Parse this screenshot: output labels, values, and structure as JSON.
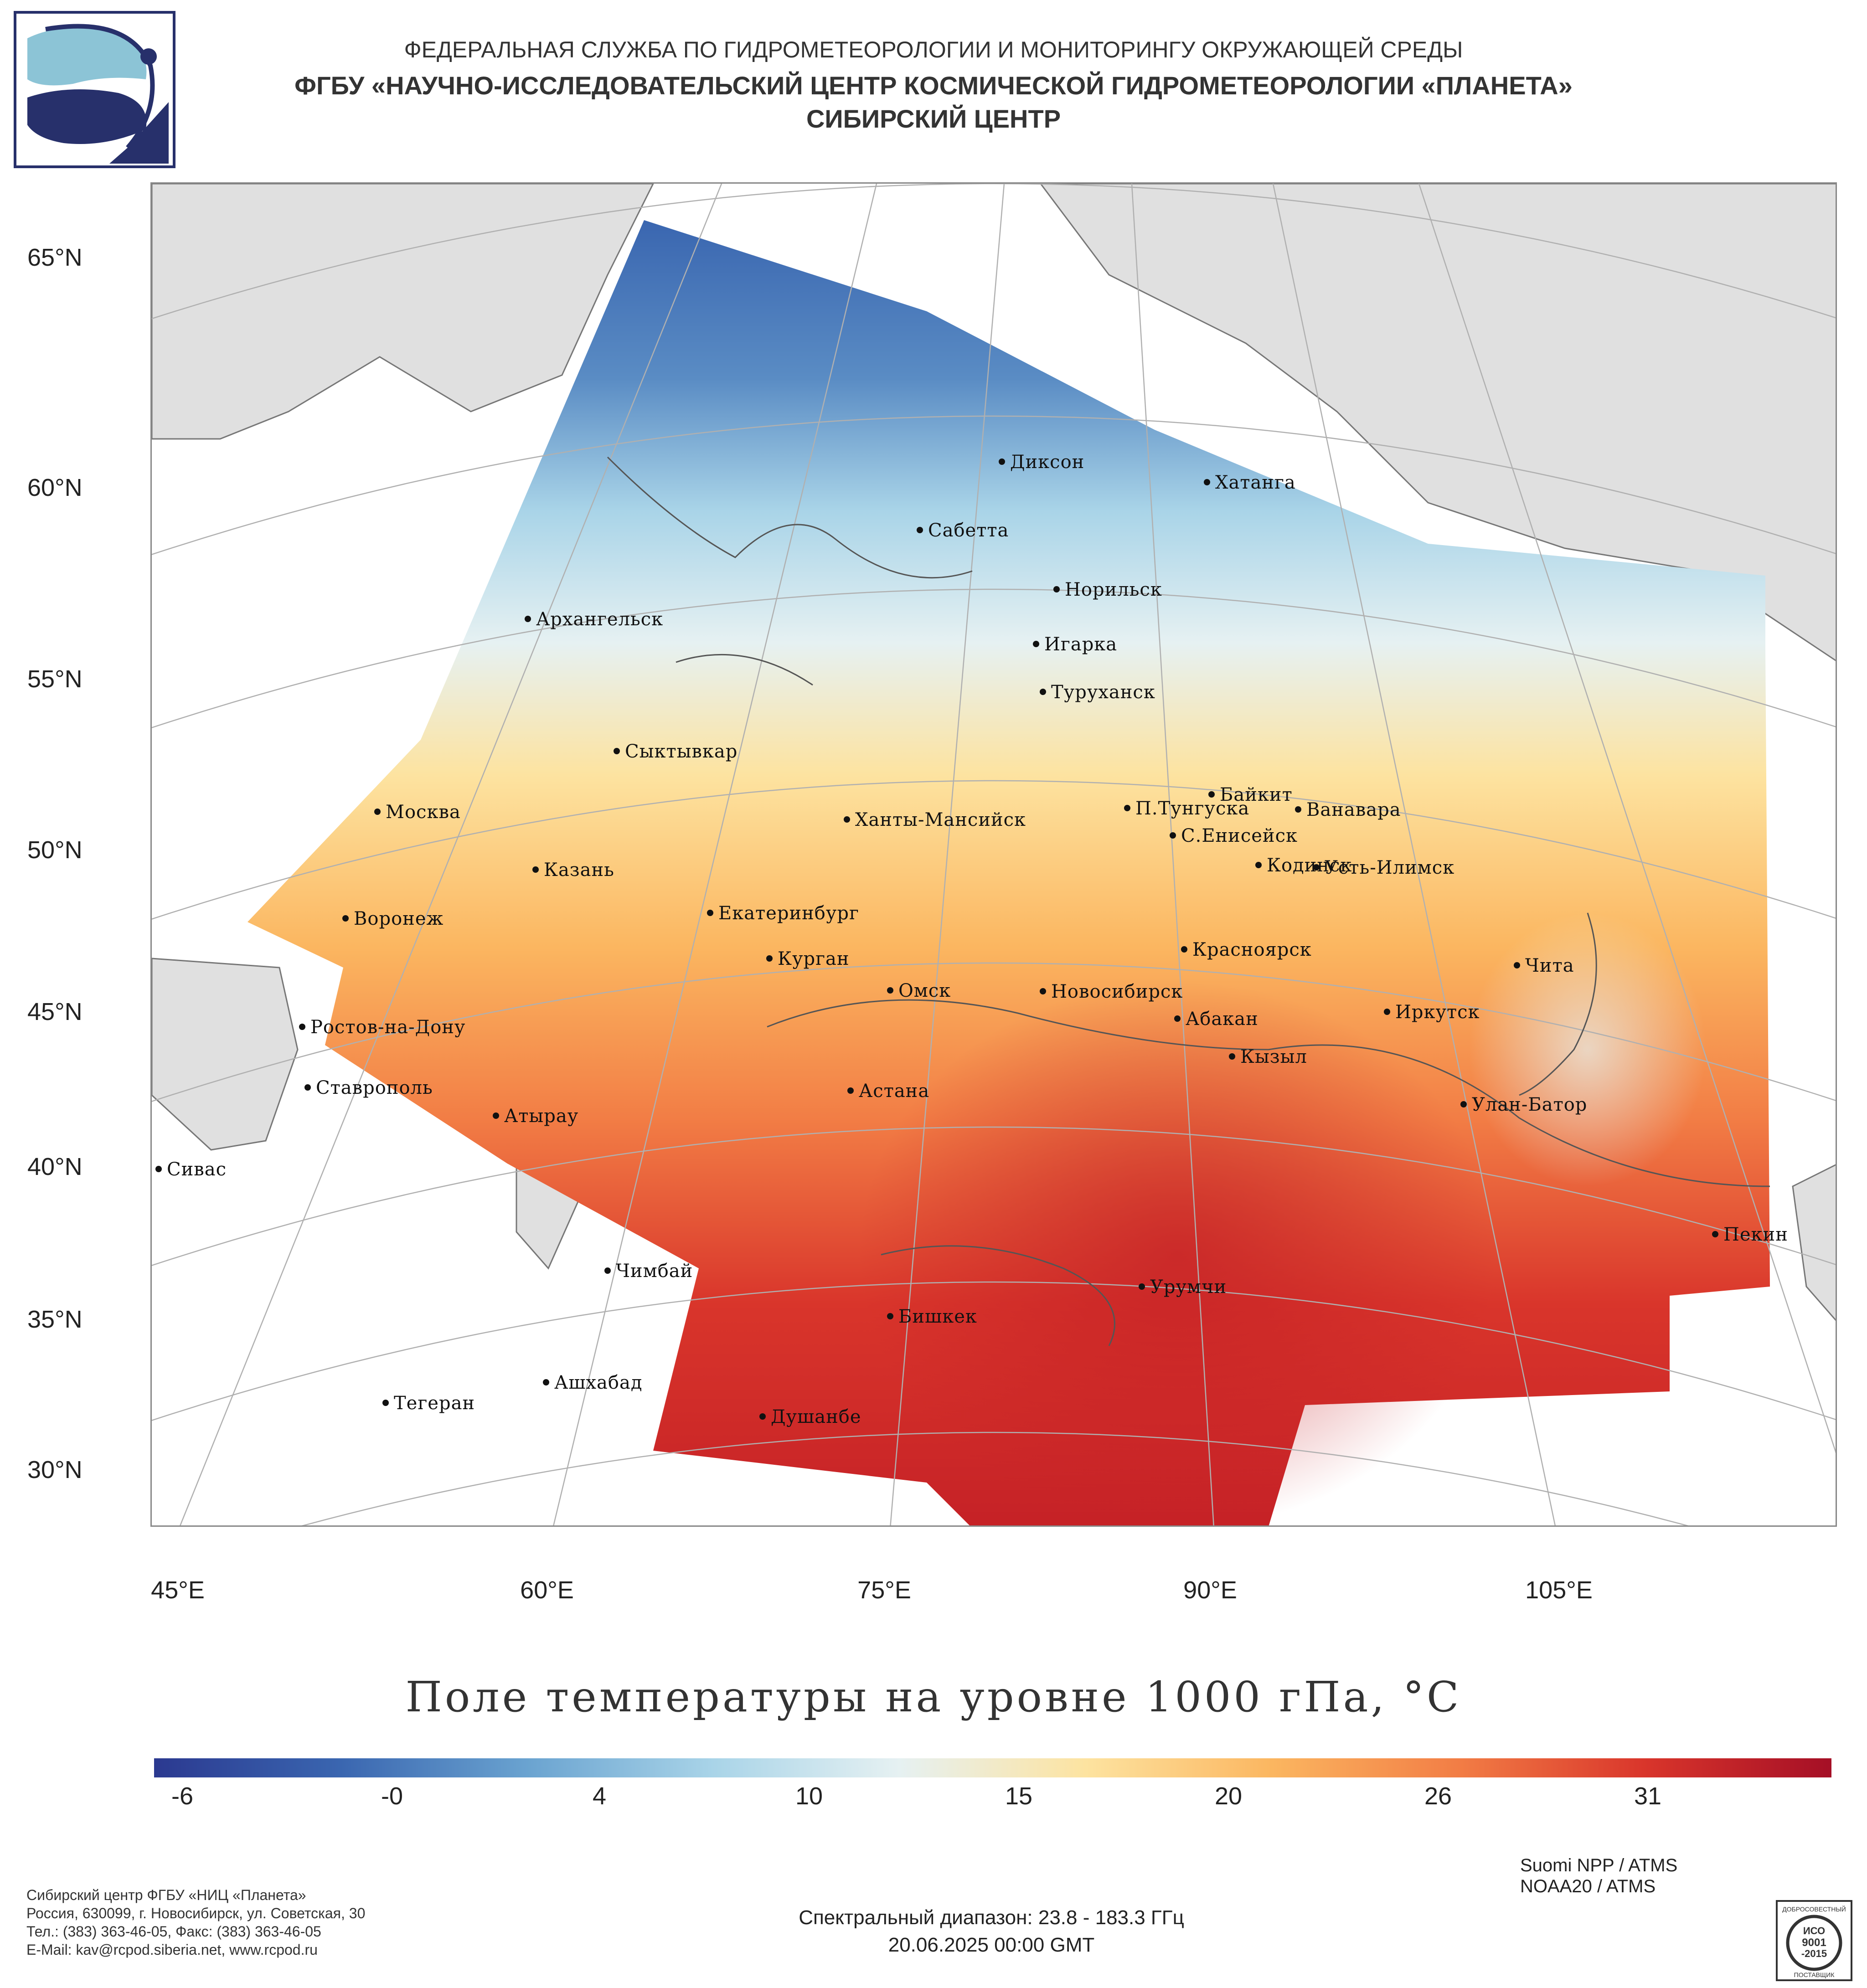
{
  "header": {
    "line1": "ФЕДЕРАЛЬНАЯ СЛУЖБА ПО ГИДРОМЕТЕОРОЛОГИИ И МОНИТОРИНГУ ОКРУЖАЮЩЕЙ СРЕДЫ",
    "line2": "ФГБУ «НАУЧНО-ИССЛЕДОВАТЕЛЬСКИЙ ЦЕНТР КОСМИЧЕСКОЙ ГИДРОМЕТЕОРОЛОГИИ «ПЛАНЕТА»",
    "line3": "СИБИРСКИЙ ЦЕНТР"
  },
  "map": {
    "title": "Поле температуры на уровне 1000 гПа, °С",
    "lat_labels": [
      "65°N",
      "60°N",
      "55°N",
      "50°N",
      "45°N",
      "40°N",
      "35°N",
      "30°N"
    ],
    "lon_labels": [
      "45°E",
      "60°E",
      "75°E",
      "90°E",
      "105°E"
    ],
    "cities": [
      {
        "name": "Диксон"
      },
      {
        "name": "Хатанга"
      },
      {
        "name": "Сабетта"
      },
      {
        "name": "Норильск"
      },
      {
        "name": "Архангельск"
      },
      {
        "name": "Игарка"
      },
      {
        "name": "Туруханск"
      },
      {
        "name": "Сыктывкар"
      },
      {
        "name": "Байкит"
      },
      {
        "name": "П.Тунгуска"
      },
      {
        "name": "Ванавара"
      },
      {
        "name": "Москва"
      },
      {
        "name": "Ханты-Мансийск"
      },
      {
        "name": "С.Енисейск"
      },
      {
        "name": "Кодинск"
      },
      {
        "name": "Усть-Илимск"
      },
      {
        "name": "Казань"
      },
      {
        "name": "Екатеринбург"
      },
      {
        "name": "Воронеж"
      },
      {
        "name": "Красноярск"
      },
      {
        "name": "Курган"
      },
      {
        "name": "Чита"
      },
      {
        "name": "Омск"
      },
      {
        "name": "Новосибирск"
      },
      {
        "name": "Иркутск"
      },
      {
        "name": "Абакан"
      },
      {
        "name": "Ростов-на-Дону"
      },
      {
        "name": "Кызыл"
      },
      {
        "name": "Ставрополь"
      },
      {
        "name": "Астана"
      },
      {
        "name": "Улан-Батор"
      },
      {
        "name": "Атырау"
      },
      {
        "name": "Сивас"
      },
      {
        "name": "Пекин"
      },
      {
        "name": "Чимбай"
      },
      {
        "name": "Урумчи"
      },
      {
        "name": "Бишкек"
      },
      {
        "name": "Ашхабад"
      },
      {
        "name": "Тегеран"
      },
      {
        "name": "Душанбе"
      }
    ]
  },
  "colorbar": {
    "labels": [
      "-6",
      "-0",
      "4",
      "10",
      "15",
      "20",
      "26",
      "31"
    ],
    "colors": [
      "#2b3990",
      "#3a66b0",
      "#6aa3d0",
      "#a9d4e8",
      "#e6f1f2",
      "#fde3a0",
      "#fbb660",
      "#f27d45",
      "#d9352b",
      "#a50f26"
    ]
  },
  "footer": {
    "org_lines": [
      "Сибирский центр ФГБУ «НИЦ «Планета»",
      "Россия, 630099, г. Новосибирск, ул. Советская, 30",
      "Тел.: (383) 363-46-05, Факс: (383) 363-46-05",
      "E-Mail: kav@rcpod.siberia.net, www.rcpod.ru"
    ],
    "spectral": "Спектральный диапазон: 23.8 - 183.3 ГГц",
    "datetime": "20.06.2025 00:00 GMT",
    "instruments": [
      "Suomi NPP / ATMS",
      "NOAA20 / ATMS"
    ],
    "iso_badge": {
      "top": "ДОБРОСОВЕСТНЫЙ",
      "mid1": "ИСО",
      "mid2": "9001",
      "mid3": "-2015",
      "bottom": "ПОСТАВЩИК"
    }
  }
}
